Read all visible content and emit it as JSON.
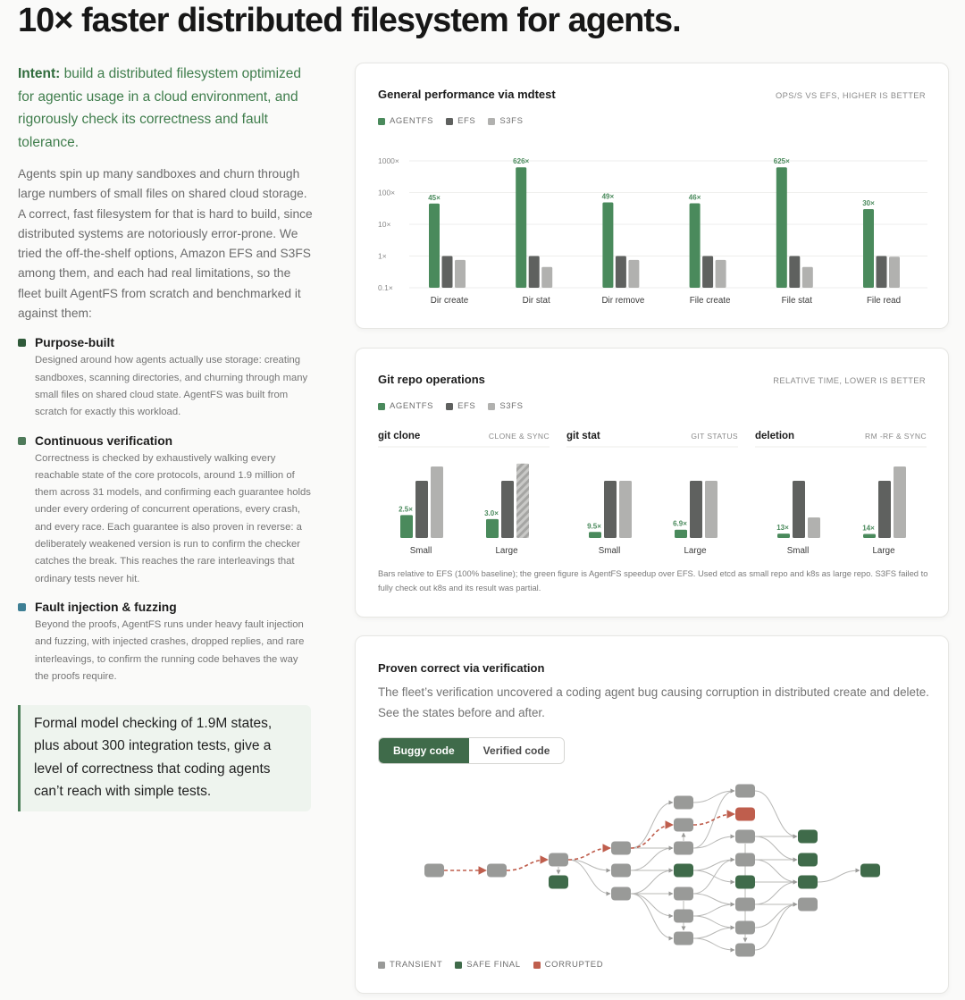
{
  "page": {
    "title": "10× faster distributed filesystem for agents.",
    "intro_bold": "Intent:",
    "intro_text": " build a distributed filesystem optimized for agentic usage in a cloud environment, and rigorously check its correctness and fault tolerance.",
    "body": "Agents spin up many sandboxes and churn through large numbers of small files on shared cloud storage. A correct, fast filesystem for that is hard to build, since distributed systems are notoriously error-prone. We tried the off-the-shelf options, Amazon EFS and S3FS among them, and each had real limitations, so the fleet built AgentFS from scratch and benchmarked it against them:",
    "features": [
      {
        "title": "Purpose-built",
        "color": "#2f5a3a",
        "text": "Designed around how agents actually use storage: creating sandboxes, scanning directories, and churning through many small files on shared cloud state. AgentFS was built from scratch for exactly this workload."
      },
      {
        "title": "Continuous verification",
        "color": "#4e7a5a",
        "text": "Correctness is checked by exhaustively walking every reachable state of the core protocols, around 1.9 million of them across 31 models, and confirming each guarantee holds under every ordering of concurrent operations, every crash, and every race. Each guarantee is also proven in reverse: a deliberately weakened version is run to confirm the checker catches the break. This reaches the rare interleavings that ordinary tests never hit."
      },
      {
        "title": "Fault injection & fuzzing",
        "color": "#3e7f95",
        "text": "Beyond the proofs, AgentFS runs under heavy fault injection and fuzzing, with injected crashes, dropped replies, and rare interleavings, to confirm the running code behaves the way the proofs require."
      }
    ],
    "quote": "Formal model checking of 1.9M states, plus about 300 integration tests, give a level of correctness that coding agents can’t reach with simple tests."
  },
  "colors": {
    "agentfs": "#4a8a5c",
    "efs": "#5f615f",
    "s3fs": "#b1b1af",
    "transient": "#999a98",
    "safe": "#3f6b4a",
    "corrupted": "#bf5e4d"
  },
  "legend": {
    "agentfs": "AGENTFS",
    "efs": "EFS",
    "s3fs": "S3FS"
  },
  "chart_data": [
    {
      "type": "bar",
      "title": "General performance via mdtest",
      "subtitle": "OPS/S VS EFS, HIGHER IS BETTER",
      "yscale": "log",
      "ylim": [
        0.1,
        1000
      ],
      "yticks": [
        "1000×",
        "100×",
        "10×",
        "1×",
        "0.1×"
      ],
      "categories": [
        "Dir create",
        "Dir stat",
        "Dir remove",
        "File create",
        "File stat",
        "File read"
      ],
      "series": [
        {
          "name": "AGENTFS",
          "values": [
            45,
            626,
            49,
            46,
            625,
            30
          ],
          "labels": [
            "45×",
            "626×",
            "49×",
            "46×",
            "625×",
            "30×"
          ]
        },
        {
          "name": "EFS",
          "values": [
            1,
            1,
            1,
            1,
            1,
            1
          ]
        },
        {
          "name": "S3FS",
          "values": [
            0.75,
            0.45,
            0.75,
            0.75,
            0.45,
            0.95
          ]
        }
      ],
      "grid": true,
      "legend": "top-left"
    },
    {
      "type": "bar",
      "title": "Git repo operations",
      "subtitle": "RELATIVE TIME, LOWER IS BETTER",
      "baseline": "EFS = 100%",
      "groups": [
        {
          "name": "git clone",
          "tag": "CLONE & SYNC",
          "categories": [
            "Small",
            "Large"
          ],
          "series": [
            {
              "name": "AGENTFS",
              "values": [
                40,
                33
              ],
              "labels": [
                "2.5×",
                "3.0×"
              ]
            },
            {
              "name": "EFS",
              "values": [
                100,
                100
              ]
            },
            {
              "name": "S3FS",
              "values": [
                125,
                130
              ],
              "partial": [
                false,
                true
              ]
            }
          ]
        },
        {
          "name": "git stat",
          "tag": "GIT STATUS",
          "categories": [
            "Small",
            "Large"
          ],
          "series": [
            {
              "name": "AGENTFS",
              "values": [
                10.5,
                14.5
              ],
              "labels": [
                "9.5×",
                "6.9×"
              ]
            },
            {
              "name": "EFS",
              "values": [
                100,
                100
              ]
            },
            {
              "name": "S3FS",
              "values": [
                100,
                100
              ],
              "partial": [
                false,
                false
              ]
            }
          ]
        },
        {
          "name": "deletion",
          "tag": "RM -RF & SYNC",
          "categories": [
            "Small",
            "Large"
          ],
          "series": [
            {
              "name": "AGENTFS",
              "values": [
                7.7,
                7.1
              ],
              "labels": [
                "13×",
                "14×"
              ]
            },
            {
              "name": "EFS",
              "values": [
                100,
                100
              ]
            },
            {
              "name": "S3FS",
              "values": [
                36,
                125
              ],
              "partial": [
                false,
                false
              ]
            }
          ]
        }
      ],
      "note": "Bars relative to EFS (100% baseline); the green figure is AgentFS speedup over EFS. Used etcd as small repo and k8s as large repo. S3FS failed to fully check out k8s and its result was partial."
    }
  ],
  "verification": {
    "title": "Proven correct via verification",
    "description": "The fleet’s verification uncovered a coding agent bug causing corruption in distributed create and delete. See the states before and after.",
    "tabs": [
      "Buggy code",
      "Verified code"
    ],
    "active_tab": 0,
    "legend": [
      "TRANSIENT",
      "SAFE FINAL",
      "CORRUPTED"
    ]
  }
}
